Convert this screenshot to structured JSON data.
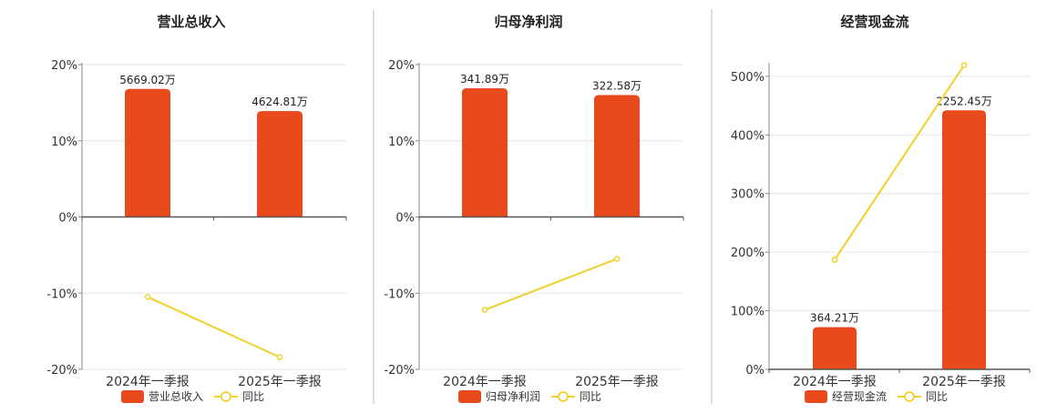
{
  "chart_data": [
    {
      "type": "bar",
      "title": "营业总收入",
      "categories": [
        "2024年一季报",
        "2025年一季报"
      ],
      "series": [
        {
          "name": "营业总收入",
          "type": "bar",
          "values": [
            16.8,
            13.9
          ],
          "labels": [
            "5669.02万",
            "4624.81万"
          ],
          "color": "#e84a1c"
        },
        {
          "name": "同比",
          "type": "line",
          "values": [
            -10.5,
            -18.4
          ],
          "color": "#f0d12a"
        }
      ],
      "ylim": [
        -20,
        20
      ],
      "yticks": [
        "20%",
        "10%",
        "0%",
        "-10%",
        "-20%"
      ],
      "ytick_values": [
        20,
        10,
        0,
        -10,
        -20
      ],
      "legend": "bottom"
    },
    {
      "type": "bar",
      "title": "归母净利润",
      "categories": [
        "2024年一季报",
        "2025年一季报"
      ],
      "series": [
        {
          "name": "归母净利润",
          "type": "bar",
          "values": [
            16.9,
            16.0
          ],
          "labels": [
            "341.89万",
            "322.58万"
          ],
          "color": "#e84a1c"
        },
        {
          "name": "同比",
          "type": "line",
          "values": [
            -12.2,
            -5.5
          ],
          "color": "#f0d12a"
        }
      ],
      "ylim": [
        -20,
        20
      ],
      "yticks": [
        "20%",
        "10%",
        "0%",
        "-10%",
        "-20%"
      ],
      "ytick_values": [
        20,
        10,
        0,
        -10,
        -20
      ],
      "legend": "bottom"
    },
    {
      "type": "bar",
      "title": "经营现金流",
      "categories": [
        "2024年一季报",
        "2025年一季报"
      ],
      "series": [
        {
          "name": "经营现金流",
          "type": "bar",
          "values": [
            72,
            442
          ],
          "labels": [
            "364.21万",
            "2252.45万"
          ],
          "color": "#e84a1c"
        },
        {
          "name": "同比",
          "type": "line",
          "values": [
            187,
            519
          ],
          "color": "#f0d12a"
        }
      ],
      "ylim": [
        0,
        520
      ],
      "yticks": [
        "500%",
        "400%",
        "300%",
        "200%",
        "100%",
        "0%"
      ],
      "ytick_values": [
        500,
        400,
        300,
        200,
        100,
        0
      ],
      "legend": "bottom"
    }
  ]
}
